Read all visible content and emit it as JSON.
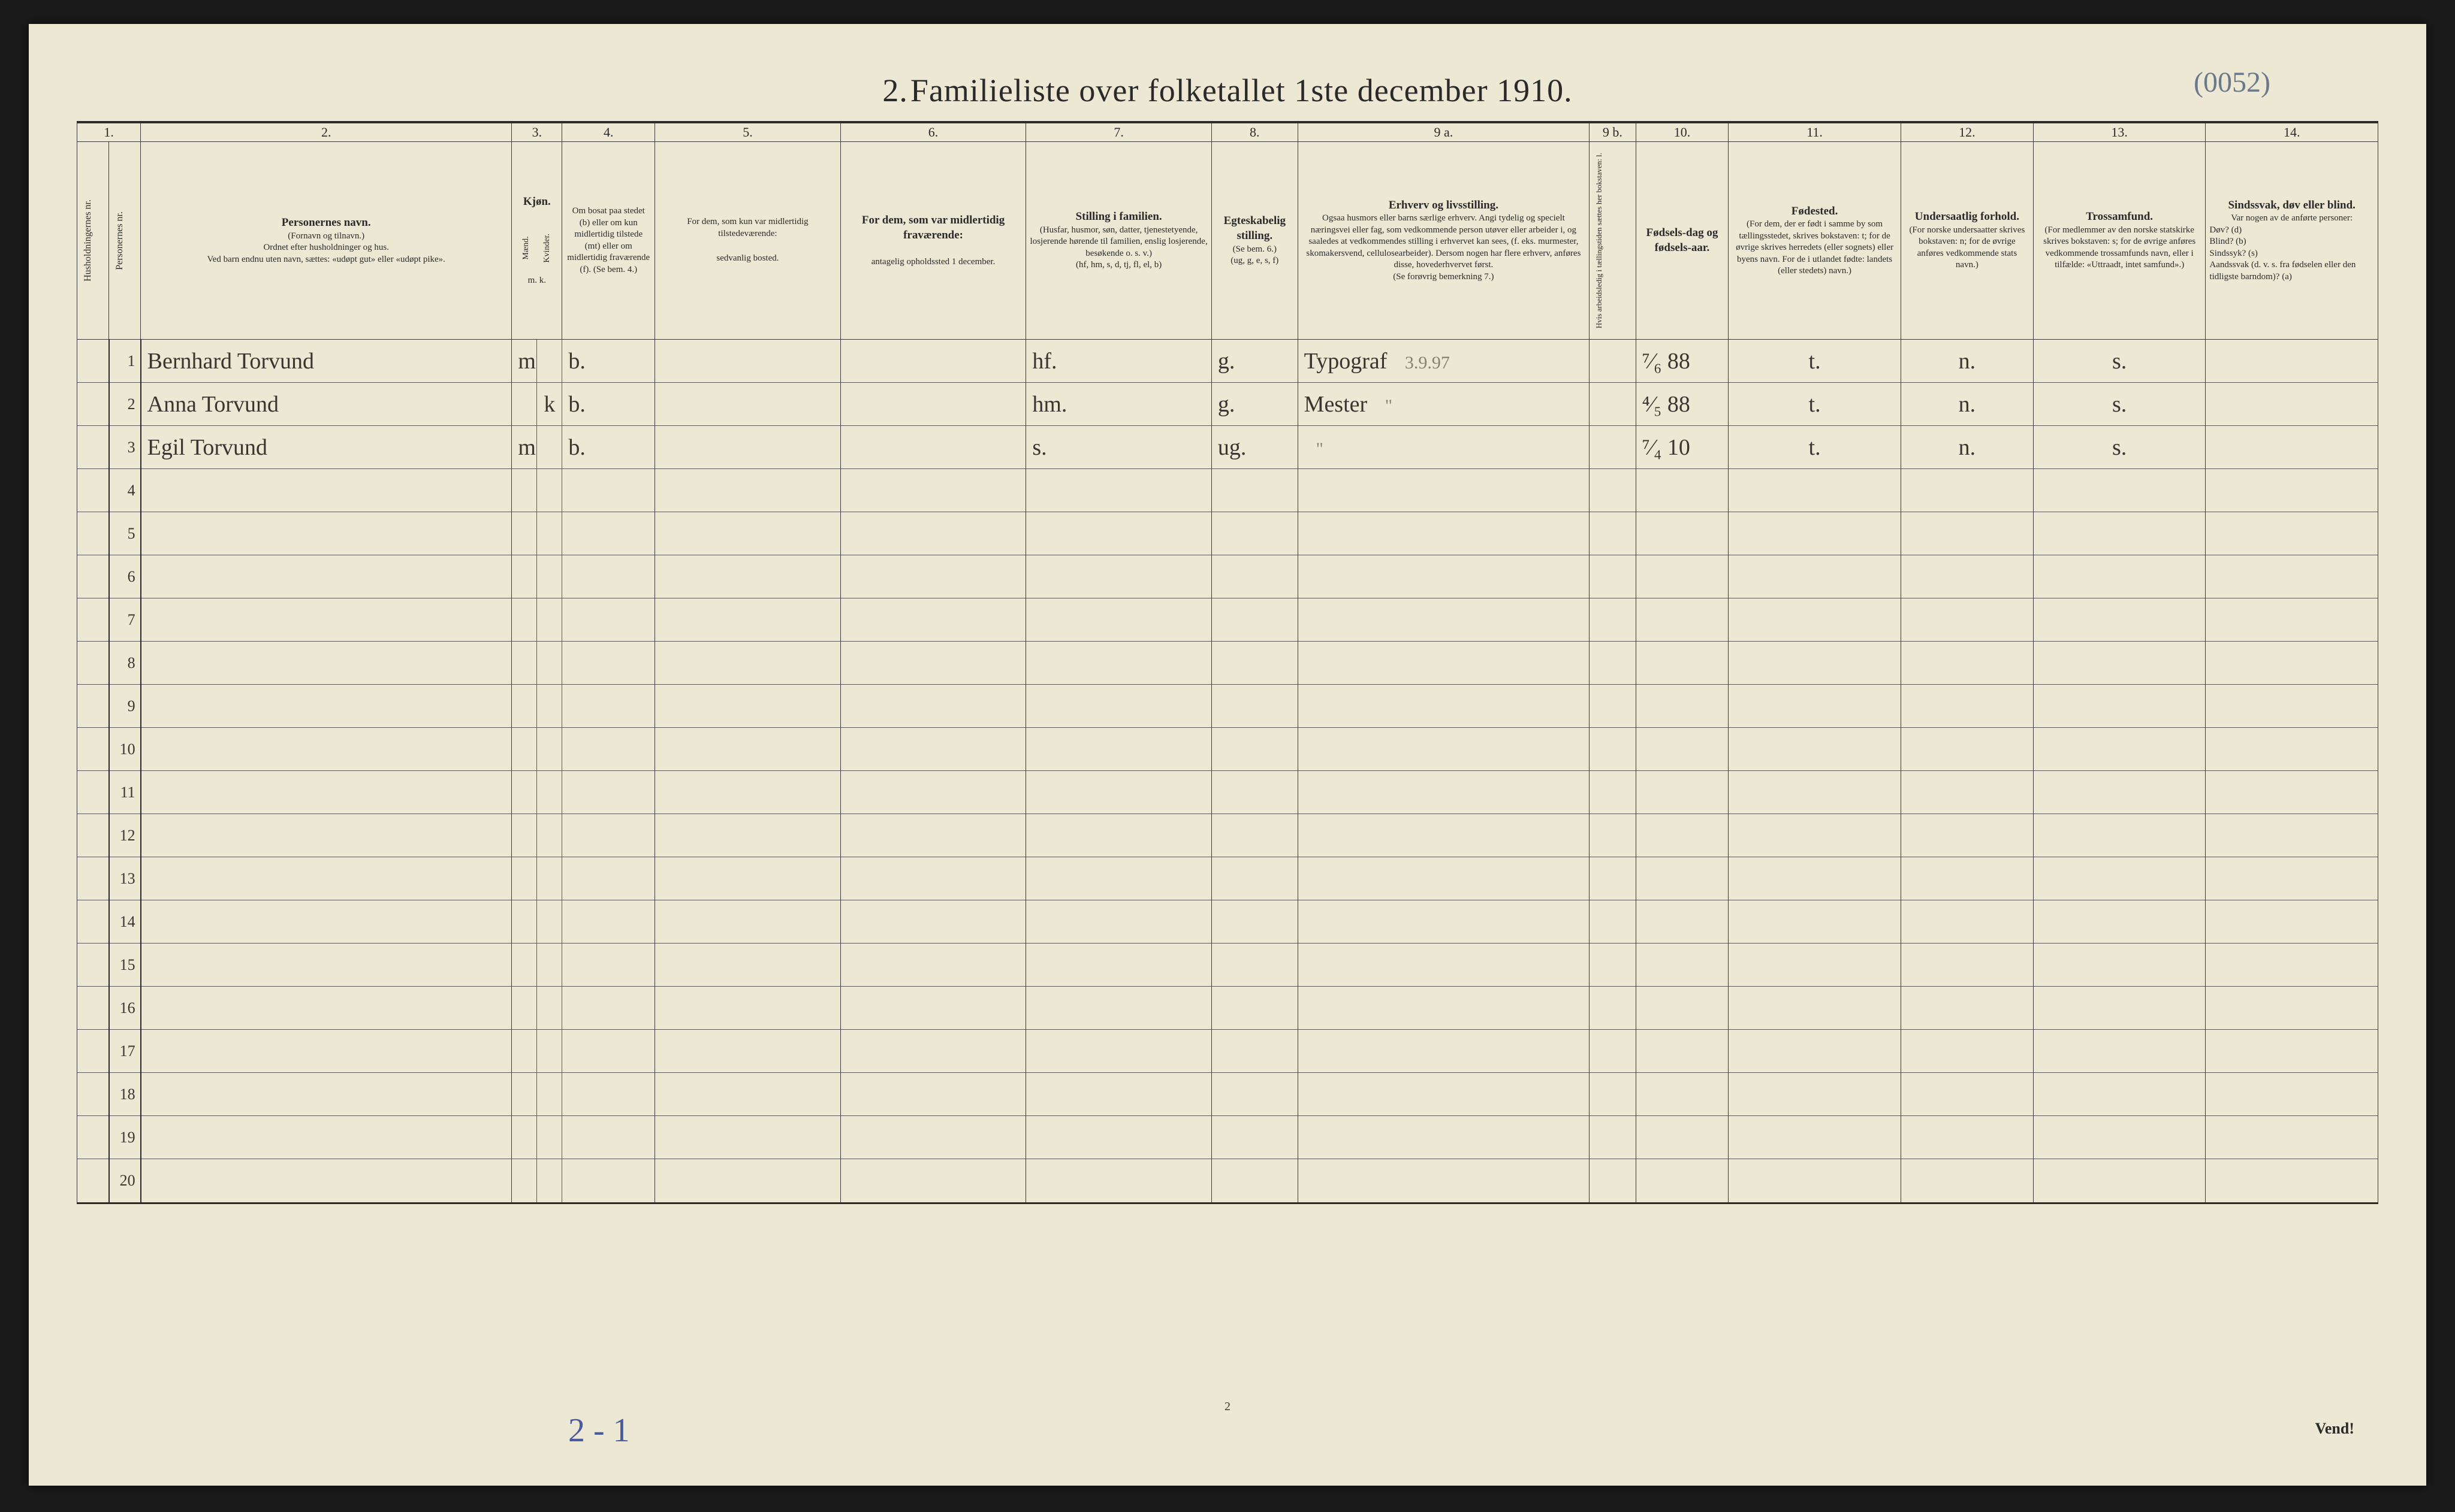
{
  "title_prefix": "2.",
  "title": "Familieliste over folketallet 1ste december 1910.",
  "handwritten_top_right": "(0052)",
  "columns": {
    "nums": [
      "1.",
      "2.",
      "3.",
      "4.",
      "5.",
      "6.",
      "7.",
      "8.",
      "9 a.",
      "9 b.",
      "10.",
      "11.",
      "12.",
      "13.",
      "14."
    ],
    "h1_vert": "Husholdningernes nr.",
    "h1b_vert": "Personernes nr.",
    "h2_strong": "Personernes navn.",
    "h2_line2": "(Fornavn og tilnavn.)",
    "h2_line3": "Ordnet efter husholdninger og hus.",
    "h2_line4": "Ved barn endnu uten navn, sættes: «udøpt gut» eller «udøpt pike».",
    "h3_strong": "Kjøn.",
    "h3_m": "Mænd.",
    "h3_k": "Kvinder.",
    "h3_mk": "m.  k.",
    "h4": "Om bosat paa stedet (b) eller om kun midlertidig tilstede (mt) eller om midlertidig fraværende (f). (Se bem. 4.)",
    "h5": "For dem, som kun var midlertidig tilstedeværende:",
    "h5b": "sedvanlig bosted.",
    "h6": "For dem, som var midlertidig fraværende:",
    "h6b": "antagelig opholdssted 1 december.",
    "h7_strong": "Stilling i familien.",
    "h7": "(Husfar, husmor, søn, datter, tjenestetyende, losjerende hørende til familien, enslig losjerende, besøkende o. s. v.)",
    "h7b": "(hf, hm, s, d, tj, fl, el, b)",
    "h8_strong": "Egteskabelig stilling.",
    "h8": "(Se bem. 6.)",
    "h8b": "(ug, g, e, s, f)",
    "h9_strong": "Erhverv og livsstilling.",
    "h9": "Ogsaa husmors eller barns særlige erhverv. Angi tydelig og specielt næringsvei eller fag, som vedkommende person utøver eller arbeider i, og saaledes at vedkommendes stilling i erhvervet kan sees, (f. eks. murmester, skomakersvend, cellulosearbeider). Dersom nogen har flere erhverv, anføres disse, hovederhvervet først.",
    "h9b": "(Se forøvrig bemerkning 7.)",
    "h9b_vert": "Hvis arbeidsledig i tællingstiden sættes her bokstaven: l.",
    "h10_strong": "Fødsels-dag og fødsels-aar.",
    "h11_strong": "Fødested.",
    "h11": "(For dem, der er født i samme by som tællingsstedet, skrives bokstaven: t; for de øvrige skrives herredets (eller sognets) eller byens navn. For de i utlandet fødte: landets (eller stedets) navn.)",
    "h12_strong": "Undersaatlig forhold.",
    "h12": "(For norske undersaatter skrives bokstaven: n; for de øvrige anføres vedkommende stats navn.)",
    "h13_strong": "Trossamfund.",
    "h13": "(For medlemmer av den norske statskirke skrives bokstaven: s; for de øvrige anføres vedkommende trossamfunds navn, eller i tilfælde: «Uttraadt, intet samfund».)",
    "h14_strong": "Sindssvak, døv eller blind.",
    "h14": "Var nogen av de anførte personer:",
    "h14_list": "Døv? (d)\nBlind? (b)\nSindssyk? (s)\nAandssvak (d. v. s. fra fødselen eller den tidligste barndom)? (a)"
  },
  "rows": [
    {
      "n": "1",
      "name": "Bernhard Torvund",
      "sex_m": "m",
      "sex_k": "",
      "res": "b.",
      "temp": "",
      "away": "",
      "fam": "hf.",
      "mar": "g.",
      "occ": "Typograf",
      "occ_note": "3.9.97",
      "birth": "⁷⁄₆ 88",
      "place": "t.",
      "nat": "n.",
      "rel": "s.",
      "dis": ""
    },
    {
      "n": "2",
      "name": "Anna Torvund",
      "sex_m": "",
      "sex_k": "k",
      "res": "b.",
      "temp": "",
      "away": "",
      "fam": "hm.",
      "mar": "g.",
      "occ": "Mester",
      "occ_note": "\"",
      "birth": "⁴⁄₅ 88",
      "place": "t.",
      "nat": "n.",
      "rel": "s.",
      "dis": ""
    },
    {
      "n": "3",
      "name": "Egil Torvund",
      "sex_m": "m",
      "sex_k": "",
      "res": "b.",
      "temp": "",
      "away": "",
      "fam": "s.",
      "mar": "ug.",
      "occ": "",
      "occ_note": "\"",
      "birth": "⁷⁄₄ 10",
      "place": "t.",
      "nat": "n.",
      "rel": "s.",
      "dis": ""
    }
  ],
  "empty_rows": [
    "4",
    "5",
    "6",
    "7",
    "8",
    "9",
    "10",
    "11",
    "12",
    "13",
    "14",
    "15",
    "16",
    "17",
    "18",
    "19",
    "20"
  ],
  "footer_hw": "2 - 1",
  "page_num": "2",
  "vend": "Vend!"
}
